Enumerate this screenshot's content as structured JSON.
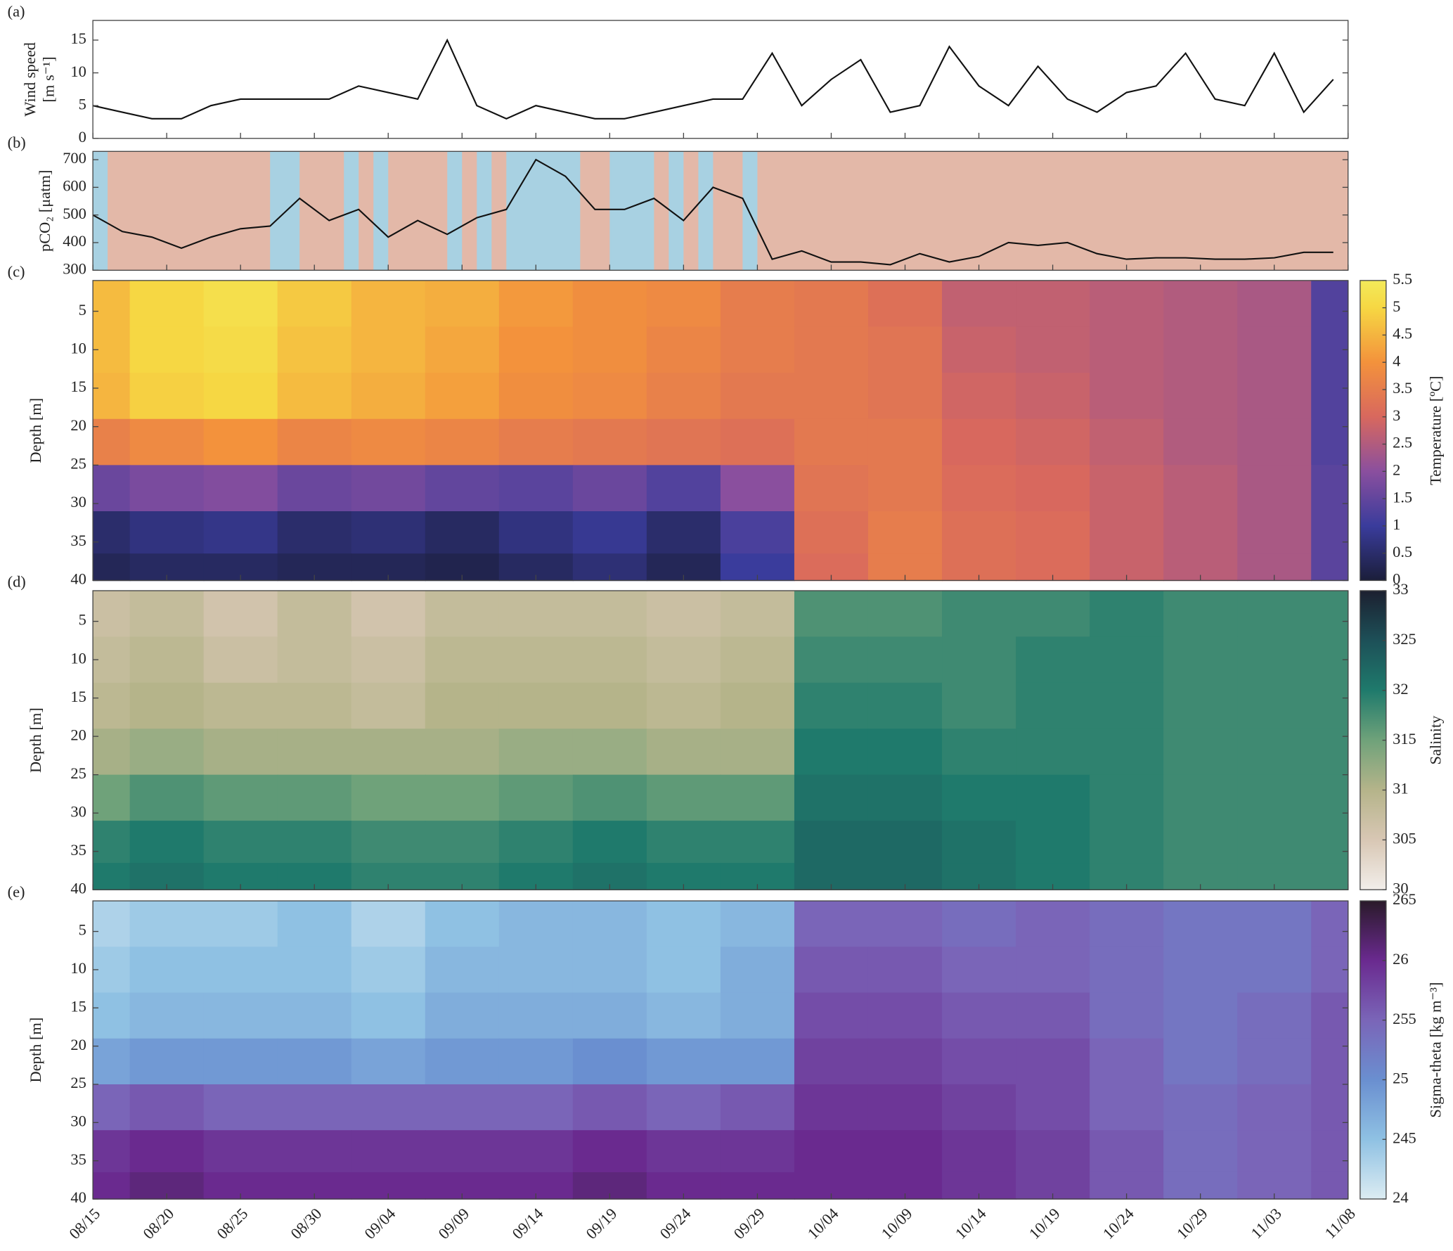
{
  "chart_data": [
    {
      "type": "line",
      "panel": "(a)",
      "ylabel": [
        "Wind speed",
        "[m s⁻¹]"
      ],
      "color": "#111111",
      "xlim": [
        "08/15",
        "11/08"
      ],
      "xticks": [
        "08/15",
        "08/20",
        "08/25",
        "08/30",
        "09/04",
        "09/09",
        "09/14",
        "09/19",
        "09/24",
        "09/29",
        "10/04",
        "10/09",
        "10/14",
        "10/19",
        "10/24",
        "10/29",
        "11/03",
        "11/08"
      ],
      "ylim": [
        0,
        18
      ],
      "yticks": [
        0,
        5,
        10,
        15
      ],
      "x": [
        "08/15",
        "08/17",
        "08/19",
        "08/21",
        "08/23",
        "08/25",
        "08/27",
        "08/29",
        "08/31",
        "09/02",
        "09/04",
        "09/06",
        "09/08",
        "09/10",
        "09/12",
        "09/14",
        "09/16",
        "09/18",
        "09/20",
        "09/22",
        "09/24",
        "09/26",
        "09/28",
        "09/30",
        "10/02",
        "10/04",
        "10/06",
        "10/08",
        "10/10",
        "10/12",
        "10/14",
        "10/16",
        "10/18",
        "10/20",
        "10/22",
        "10/24",
        "10/26",
        "10/28",
        "10/30",
        "11/01",
        "11/03",
        "11/05",
        "11/07"
      ],
      "values": [
        5,
        4,
        3,
        3,
        5,
        6,
        6,
        6,
        6,
        8,
        7,
        6,
        15,
        5,
        3,
        5,
        4,
        3,
        3,
        4,
        5,
        6,
        6,
        13,
        5,
        9,
        12,
        4,
        5,
        14,
        8,
        5,
        11,
        6,
        4,
        7,
        8,
        13,
        6,
        5,
        13,
        4,
        9
      ]
    },
    {
      "type": "line",
      "panel": "(b)",
      "ylabel": "pCO₂ [μatm]",
      "color": "#111111",
      "xlim": [
        "08/15",
        "11/08"
      ],
      "xticks": [
        "08/15",
        "08/20",
        "08/25",
        "08/30",
        "09/04",
        "09/09",
        "09/14",
        "09/19",
        "09/24",
        "09/29",
        "10/04",
        "10/09",
        "10/14",
        "10/19",
        "10/24",
        "10/29",
        "11/03",
        "11/08"
      ],
      "ylim": [
        300,
        730
      ],
      "yticks": [
        300,
        400,
        500,
        600,
        700
      ],
      "background_color": "#e3b8a8",
      "period_color": "#a8d1e2",
      "periods": [
        [
          "08/15",
          "08/16"
        ],
        [
          "08/27",
          "08/29"
        ],
        [
          "09/01",
          "09/02"
        ],
        [
          "09/03",
          "09/04"
        ],
        [
          "09/08",
          "09/09"
        ],
        [
          "09/10",
          "09/11"
        ],
        [
          "09/12",
          "09/17"
        ],
        [
          "09/19",
          "09/22"
        ],
        [
          "09/23",
          "09/24"
        ],
        [
          "09/25",
          "09/26"
        ],
        [
          "09/28",
          "09/29"
        ]
      ],
      "x": [
        "08/15",
        "08/17",
        "08/19",
        "08/21",
        "08/23",
        "08/25",
        "08/27",
        "08/29",
        "08/31",
        "09/02",
        "09/04",
        "09/06",
        "09/08",
        "09/10",
        "09/12",
        "09/14",
        "09/16",
        "09/18",
        "09/20",
        "09/22",
        "09/24",
        "09/26",
        "09/28",
        "09/30",
        "10/02",
        "10/04",
        "10/06",
        "10/08",
        "10/10",
        "10/12",
        "10/14",
        "10/16",
        "10/18",
        "10/20",
        "10/22",
        "10/24",
        "10/26",
        "10/28",
        "10/30",
        "11/01",
        "11/03",
        "11/05",
        "11/07"
      ],
      "values": [
        500,
        440,
        420,
        380,
        420,
        450,
        460,
        560,
        480,
        520,
        420,
        480,
        430,
        490,
        520,
        700,
        640,
        520,
        520,
        560,
        480,
        600,
        560,
        340,
        370,
        330,
        330,
        320,
        360,
        330,
        350,
        400,
        390,
        400,
        360,
        340,
        345,
        345,
        340,
        340,
        345,
        365,
        365
      ]
    },
    {
      "type": "heatmap",
      "panel": "(c)",
      "ylabel": "Depth [m]",
      "colorbar_label": "Temperature [ºC]",
      "xlim": [
        "08/15",
        "11/08"
      ],
      "xticks": [
        "08/15",
        "08/20",
        "08/25",
        "08/30",
        "09/04",
        "09/09",
        "09/14",
        "09/19",
        "09/24",
        "09/29",
        "10/04",
        "10/09",
        "10/14",
        "10/19",
        "10/24",
        "10/29",
        "11/03",
        "11/08"
      ],
      "ylim": [
        1,
        40
      ],
      "yticks": [
        5,
        10,
        15,
        20,
        25,
        30,
        35,
        40
      ],
      "clim": [
        0,
        5.5
      ],
      "cticks": [
        0,
        0.5,
        1,
        1.5,
        2,
        2.5,
        3,
        3.5,
        4,
        4.5,
        5,
        5.5
      ],
      "colormap": [
        [
          0,
          "#1b1e3a"
        ],
        [
          1,
          "#3a3c9c"
        ],
        [
          2,
          "#8a4f9e"
        ],
        [
          3,
          "#d8685e"
        ],
        [
          4,
          "#f3923c"
        ],
        [
          5,
          "#f6d743"
        ],
        [
          5.5,
          "#f3ea5a"
        ]
      ],
      "x": [
        "08/15",
        "08/20",
        "08/25",
        "08/30",
        "09/04",
        "09/09",
        "09/14",
        "09/19",
        "09/24",
        "09/29",
        "10/04",
        "10/09",
        "10/14",
        "10/19",
        "10/24",
        "10/29",
        "11/03",
        "11/08"
      ],
      "depths": [
        4,
        10,
        16,
        22,
        28,
        34,
        39
      ],
      "values": [
        [
          4.6,
          5.0,
          5.2,
          4.8,
          4.5,
          4.4,
          4.1,
          3.9,
          3.8,
          3.5,
          3.4,
          3.2,
          2.7,
          2.7,
          2.6,
          2.5,
          2.4,
          1.3
        ],
        [
          4.6,
          5.0,
          5.1,
          4.7,
          4.5,
          4.3,
          4.0,
          3.9,
          3.7,
          3.5,
          3.4,
          3.3,
          2.8,
          2.7,
          2.6,
          2.5,
          2.4,
          1.3
        ],
        [
          4.5,
          4.9,
          5.0,
          4.6,
          4.4,
          4.2,
          3.9,
          3.8,
          3.6,
          3.4,
          3.4,
          3.3,
          2.9,
          2.8,
          2.6,
          2.5,
          2.4,
          1.3
        ],
        [
          3.6,
          3.8,
          4.0,
          3.7,
          3.8,
          3.7,
          3.5,
          3.4,
          3.3,
          3.2,
          3.4,
          3.4,
          3.0,
          2.9,
          2.7,
          2.5,
          2.4,
          1.3
        ],
        [
          1.6,
          1.8,
          1.9,
          1.6,
          1.7,
          1.5,
          1.4,
          1.6,
          1.3,
          2.0,
          3.3,
          3.4,
          3.1,
          3.0,
          2.8,
          2.6,
          2.4,
          1.4
        ],
        [
          0.5,
          0.7,
          0.8,
          0.5,
          0.6,
          0.4,
          0.7,
          0.9,
          0.5,
          1.2,
          3.2,
          3.5,
          3.2,
          3.1,
          2.8,
          2.6,
          2.4,
          1.4
        ],
        [
          0.3,
          0.4,
          0.4,
          0.3,
          0.3,
          0.2,
          0.4,
          0.6,
          0.3,
          1.0,
          3.1,
          3.5,
          3.2,
          3.1,
          2.8,
          2.6,
          2.4,
          1.4
        ]
      ]
    },
    {
      "type": "heatmap",
      "panel": "(d)",
      "ylabel": "Depth [m]",
      "colorbar_label": "Salinity",
      "xlim": [
        "08/15",
        "11/08"
      ],
      "xticks": [
        "08/15",
        "08/20",
        "08/25",
        "08/30",
        "09/04",
        "09/09",
        "09/14",
        "09/19",
        "09/24",
        "09/29",
        "10/04",
        "10/09",
        "10/14",
        "10/19",
        "10/24",
        "10/29",
        "11/03",
        "11/08"
      ],
      "ylim": [
        1,
        40
      ],
      "yticks": [
        5,
        10,
        15,
        20,
        25,
        30,
        35,
        40
      ],
      "clim": [
        30,
        33
      ],
      "cticks": [
        30,
        {
          "value": 30.5,
          "label": "305"
        },
        31,
        {
          "value": 31.5,
          "label": "315"
        },
        32,
        {
          "value": 32.5,
          "label": "325"
        },
        33
      ],
      "colormap": [
        [
          30,
          "#f2eeea"
        ],
        [
          30.5,
          "#d8c7b4"
        ],
        [
          31,
          "#b5b48a"
        ],
        [
          31.5,
          "#6fa27a"
        ],
        [
          32,
          "#1f7a6c"
        ],
        [
          32.5,
          "#1d5058"
        ],
        [
          33,
          "#1c2030"
        ]
      ],
      "x": [
        "08/15",
        "08/20",
        "08/25",
        "08/30",
        "09/04",
        "09/09",
        "09/14",
        "09/19",
        "09/24",
        "09/29",
        "10/04",
        "10/09",
        "10/14",
        "10/19",
        "10/24",
        "10/29",
        "11/03",
        "11/08"
      ],
      "depths": [
        4,
        10,
        16,
        22,
        28,
        34,
        39
      ],
      "values": [
        [
          30.7,
          30.8,
          30.6,
          30.8,
          30.6,
          30.8,
          30.8,
          30.8,
          30.7,
          30.8,
          31.7,
          31.7,
          31.8,
          31.8,
          31.9,
          31.8,
          31.8,
          31.8
        ],
        [
          30.8,
          30.9,
          30.7,
          30.8,
          30.7,
          30.9,
          30.9,
          30.9,
          30.8,
          30.9,
          31.8,
          31.8,
          31.8,
          31.9,
          31.9,
          31.8,
          31.8,
          31.8
        ],
        [
          30.9,
          31.0,
          30.9,
          30.9,
          30.8,
          31.0,
          31.0,
          31.0,
          30.9,
          31.0,
          31.9,
          31.9,
          31.8,
          31.9,
          31.9,
          31.8,
          31.8,
          31.8
        ],
        [
          31.1,
          31.2,
          31.1,
          31.1,
          31.1,
          31.1,
          31.2,
          31.2,
          31.1,
          31.1,
          32.0,
          32.0,
          31.9,
          31.9,
          31.9,
          31.8,
          31.8,
          31.8
        ],
        [
          31.5,
          31.7,
          31.6,
          31.6,
          31.5,
          31.5,
          31.6,
          31.7,
          31.6,
          31.6,
          32.1,
          32.1,
          32.0,
          32.0,
          31.9,
          31.8,
          31.8,
          31.8
        ],
        [
          31.9,
          32.0,
          31.9,
          31.9,
          31.8,
          31.8,
          31.9,
          32.0,
          31.9,
          31.9,
          32.2,
          32.2,
          32.1,
          32.0,
          31.9,
          31.8,
          31.8,
          31.8
        ],
        [
          32.0,
          32.1,
          32.0,
          32.0,
          31.9,
          31.9,
          32.0,
          32.1,
          32.0,
          32.0,
          32.2,
          32.2,
          32.1,
          32.0,
          31.9,
          31.8,
          31.8,
          31.8
        ]
      ]
    },
    {
      "type": "heatmap",
      "panel": "(e)",
      "ylabel": "Depth [m]",
      "colorbar_label": "Sigma-theta [kg m⁻³]",
      "xlim": [
        "08/15",
        "11/08"
      ],
      "xticks": [
        "08/15",
        "08/20",
        "08/25",
        "08/30",
        "09/04",
        "09/09",
        "09/14",
        "09/19",
        "09/24",
        "09/29",
        "10/04",
        "10/09",
        "10/14",
        "10/19",
        "10/24",
        "10/29",
        "11/03",
        "11/08"
      ],
      "ylim": [
        1,
        40
      ],
      "yticks": [
        5,
        10,
        15,
        20,
        25,
        30,
        35,
        40
      ],
      "clim": [
        24,
        26.5
      ],
      "cticks": [
        24,
        {
          "value": 24.5,
          "label": "245"
        },
        25,
        {
          "value": 25.5,
          "label": "255"
        },
        26,
        {
          "value": 26.5,
          "label": "265"
        }
      ],
      "colormap": [
        [
          24,
          "#dcecf2"
        ],
        [
          24.5,
          "#8fc1e3"
        ],
        [
          25,
          "#6a8fd0"
        ],
        [
          25.5,
          "#7a65b8"
        ],
        [
          26,
          "#6a2a8f"
        ],
        [
          26.5,
          "#2a1a2a"
        ]
      ],
      "x": [
        "08/15",
        "08/20",
        "08/25",
        "08/30",
        "09/04",
        "09/09",
        "09/14",
        "09/19",
        "09/24",
        "09/29",
        "10/04",
        "10/09",
        "10/14",
        "10/19",
        "10/24",
        "10/29",
        "11/03",
        "11/08"
      ],
      "depths": [
        4,
        10,
        16,
        22,
        28,
        34,
        39
      ],
      "values": [
        [
          24.3,
          24.4,
          24.4,
          24.5,
          24.3,
          24.5,
          24.6,
          24.6,
          24.5,
          24.6,
          25.5,
          25.5,
          25.4,
          25.5,
          25.4,
          25.3,
          25.3,
          25.5
        ],
        [
          24.4,
          24.5,
          24.5,
          24.5,
          24.4,
          24.6,
          24.6,
          24.6,
          24.5,
          24.7,
          25.6,
          25.6,
          25.5,
          25.5,
          25.4,
          25.3,
          25.3,
          25.5
        ],
        [
          24.5,
          24.6,
          24.6,
          24.6,
          24.5,
          24.7,
          24.7,
          24.7,
          24.6,
          24.7,
          25.7,
          25.7,
          25.6,
          25.6,
          25.4,
          25.3,
          25.4,
          25.6
        ],
        [
          24.8,
          24.9,
          24.9,
          24.9,
          24.8,
          24.9,
          24.9,
          25.0,
          24.9,
          24.9,
          25.8,
          25.8,
          25.7,
          25.7,
          25.5,
          25.3,
          25.4,
          25.6
        ],
        [
          25.5,
          25.6,
          25.5,
          25.5,
          25.5,
          25.5,
          25.5,
          25.6,
          25.5,
          25.6,
          25.9,
          25.9,
          25.8,
          25.7,
          25.5,
          25.4,
          25.5,
          25.6
        ],
        [
          25.9,
          26.0,
          25.9,
          25.9,
          25.9,
          25.9,
          25.9,
          26.0,
          25.9,
          25.9,
          26.0,
          26.0,
          25.9,
          25.8,
          25.6,
          25.4,
          25.5,
          25.6
        ],
        [
          26.0,
          26.1,
          26.0,
          26.0,
          26.0,
          26.0,
          26.0,
          26.1,
          26.0,
          26.0,
          26.0,
          26.0,
          25.9,
          25.8,
          25.6,
          25.4,
          25.5,
          25.6
        ]
      ]
    }
  ]
}
